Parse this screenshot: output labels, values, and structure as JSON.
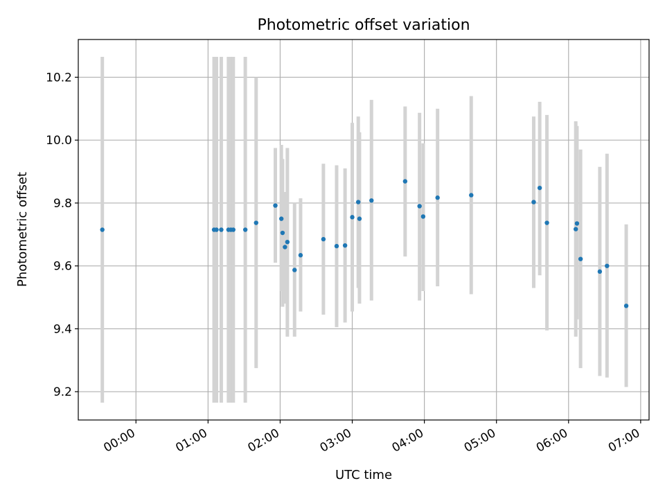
{
  "chart_data": {
    "type": "scatter",
    "title": "Photometric offset variation",
    "xlabel": "UTC time",
    "ylabel": "Photometric offset",
    "xlim": [
      "23:12",
      "07:07"
    ],
    "ylim": [
      9.11,
      10.32
    ],
    "x_ticks": [
      "00:00",
      "01:00",
      "02:00",
      "03:00",
      "04:00",
      "05:00",
      "06:00",
      "07:00"
    ],
    "y_ticks": [
      "9.2",
      "9.4",
      "9.6",
      "9.8",
      "10.0",
      "10.2"
    ],
    "grid": true,
    "legend": "none",
    "marker_color": "#1f77b4",
    "errorbar_color": "#d3d3d3",
    "points": [
      {
        "t": "23:32",
        "y": 9.715,
        "lo": 9.165,
        "hi": 10.265
      },
      {
        "t": "01:05",
        "y": 9.715,
        "lo": 9.165,
        "hi": 10.265
      },
      {
        "t": "01:07",
        "y": 9.715,
        "lo": 9.165,
        "hi": 10.265
      },
      {
        "t": "01:11",
        "y": 9.715,
        "lo": 9.165,
        "hi": 10.265
      },
      {
        "t": "01:17",
        "y": 9.715,
        "lo": 9.165,
        "hi": 10.265
      },
      {
        "t": "01:19",
        "y": 9.715,
        "lo": 9.165,
        "hi": 10.265
      },
      {
        "t": "01:21",
        "y": 9.715,
        "lo": 9.165,
        "hi": 10.265
      },
      {
        "t": "01:31",
        "y": 9.715,
        "lo": 9.165,
        "hi": 10.265
      },
      {
        "t": "01:40",
        "y": 9.737,
        "lo": 9.275,
        "hi": 10.2
      },
      {
        "t": "01:56",
        "y": 9.792,
        "lo": 9.61,
        "hi": 9.975
      },
      {
        "t": "02:01",
        "y": 9.75,
        "lo": 9.52,
        "hi": 9.985
      },
      {
        "t": "02:02",
        "y": 9.705,
        "lo": 9.47,
        "hi": 9.94
      },
      {
        "t": "02:04",
        "y": 9.66,
        "lo": 9.48,
        "hi": 9.835
      },
      {
        "t": "02:06",
        "y": 9.676,
        "lo": 9.375,
        "hi": 9.975
      },
      {
        "t": "02:12",
        "y": 9.587,
        "lo": 9.375,
        "hi": 9.8
      },
      {
        "t": "02:17",
        "y": 9.634,
        "lo": 9.455,
        "hi": 9.815
      },
      {
        "t": "02:36",
        "y": 9.685,
        "lo": 9.445,
        "hi": 9.925
      },
      {
        "t": "02:47",
        "y": 9.663,
        "lo": 9.405,
        "hi": 9.92
      },
      {
        "t": "02:54",
        "y": 9.665,
        "lo": 9.42,
        "hi": 9.91
      },
      {
        "t": "03:00",
        "y": 9.755,
        "lo": 9.455,
        "hi": 10.055
      },
      {
        "t": "03:05",
        "y": 9.803,
        "lo": 9.53,
        "hi": 10.075
      },
      {
        "t": "03:06",
        "y": 9.75,
        "lo": 9.48,
        "hi": 10.025
      },
      {
        "t": "03:16",
        "y": 9.808,
        "lo": 9.49,
        "hi": 10.128
      },
      {
        "t": "03:44",
        "y": 9.869,
        "lo": 9.63,
        "hi": 10.107
      },
      {
        "t": "03:56",
        "y": 9.79,
        "lo": 9.49,
        "hi": 10.087
      },
      {
        "t": "03:59",
        "y": 9.757,
        "lo": 9.52,
        "hi": 9.99
      },
      {
        "t": "04:11",
        "y": 9.817,
        "lo": 9.535,
        "hi": 10.1
      },
      {
        "t": "04:39",
        "y": 9.825,
        "lo": 9.51,
        "hi": 10.14
      },
      {
        "t": "05:31",
        "y": 9.803,
        "lo": 9.53,
        "hi": 10.075
      },
      {
        "t": "05:36",
        "y": 9.848,
        "lo": 9.57,
        "hi": 10.122
      },
      {
        "t": "05:42",
        "y": 9.737,
        "lo": 9.395,
        "hi": 10.08
      },
      {
        "t": "06:06",
        "y": 9.717,
        "lo": 9.375,
        "hi": 10.06
      },
      {
        "t": "06:07",
        "y": 9.735,
        "lo": 9.43,
        "hi": 10.045
      },
      {
        "t": "06:10",
        "y": 9.622,
        "lo": 9.275,
        "hi": 9.97
      },
      {
        "t": "06:26",
        "y": 9.582,
        "lo": 9.25,
        "hi": 9.915
      },
      {
        "t": "06:32",
        "y": 9.6,
        "lo": 9.245,
        "hi": 9.957
      },
      {
        "t": "06:48",
        "y": 9.473,
        "lo": 9.215,
        "hi": 9.732
      }
    ]
  }
}
